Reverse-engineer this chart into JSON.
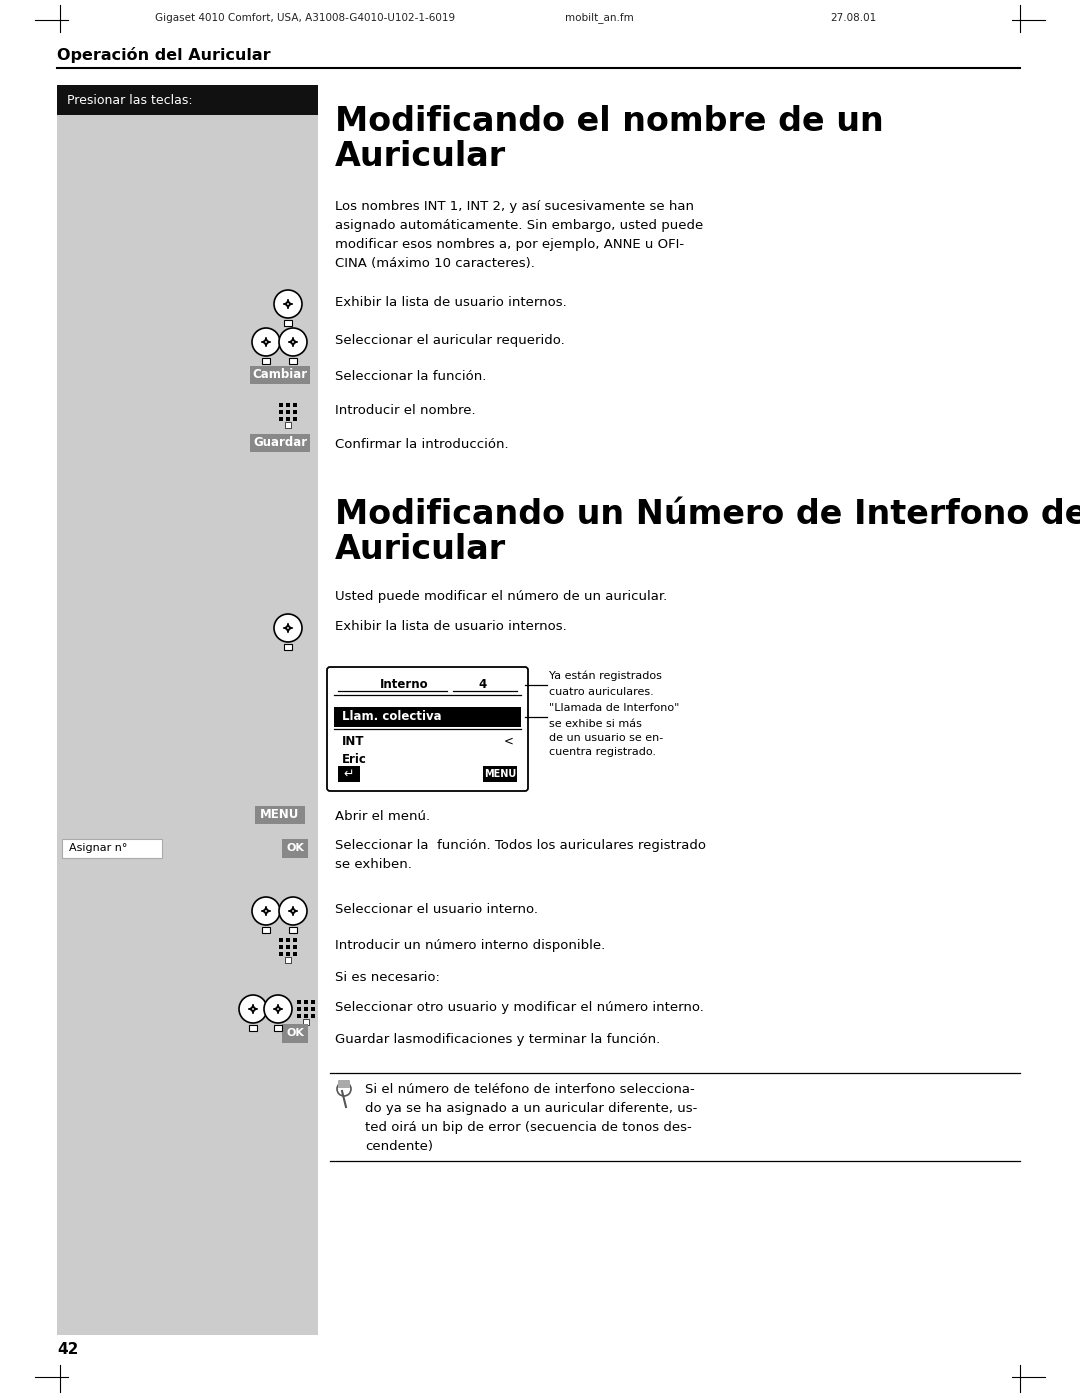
{
  "page_bg": "#ffffff",
  "left_col_bg": "#cccccc",
  "header_text": "Gigaset 4010 Comfort, USA, A31008-G4010-U102-1-6019",
  "header_mid": "mobilt_an.fm",
  "header_right": "27.08.01",
  "section_header": "Operación del Auricular",
  "black_bar_text": "Presionar las teclas:",
  "title1_line1": "Modificando el nombre de un",
  "title1_line2": "Auricular",
  "title2_line1": "Modificando un Número de Interfono de",
  "title2_line2": "Auricular",
  "body1_lines": [
    "Los nombres INT 1, INT 2, y así sucesivamente se han",
    "asignado automáticamente. Sin embargo, usted puede",
    "modificar esos nombres a, por ejemplo, ANNE u OFI-",
    "CINA (máximo 10 caracteres)."
  ],
  "body2": "Usted puede modificar el número de un auricular.",
  "step1_text": "Exhibir la lista de usuario internos.",
  "step2_text": "Seleccionar el auricular requerido.",
  "step3_text": "Seleccionar la función.",
  "step4_text": "Introducir el nombre.",
  "step5_text": "Confirmar la introducción.",
  "step6_text": "Exhibir la lista de usuario internos.",
  "step7_text": "Abrir el menú.",
  "step8_line1": "Seleccionar la  función. Todos los auriculares registrado",
  "step8_line2": "se exhiben.",
  "step9_text": "Seleccionar el usuario interno.",
  "step10_text": "Introducir un número interno disponible.",
  "step11_text": "Si es necesario:",
  "step12_text": "Seleccionar otro usuario y modificar el número interno.",
  "step13_text": "Guardar lasmodificaciones y terminar la función.",
  "note_right1_line1": "Ya están registrados",
  "note_right1_line2": "cuatro auriculares.",
  "note_right2_line1": "\"Llamada de Interfono\"",
  "note_right2_line2": "se exhibe si más",
  "note_right2_line3": "de un usuario se en-",
  "note_right2_line4": "cuentra registrado.",
  "note_box_lines": [
    "Si el número de teléfono de interfono selecciona-",
    "do ya se ha asignado a un auricular diferente, us-",
    "ted oirá un bip de error (secuencia de tonos des-",
    "cendente)"
  ],
  "page_number": "42",
  "cambiar_text": "Cambiar",
  "guardar_text": "Guardar",
  "menu_text": "MENU",
  "ok_text": "OK",
  "asignar_text": "Asignar n°",
  "int_text": "INT",
  "eric_text": "Eric",
  "interno_text": "Interno",
  "four_text": "4",
  "llam_text": "Llam. colectiva"
}
